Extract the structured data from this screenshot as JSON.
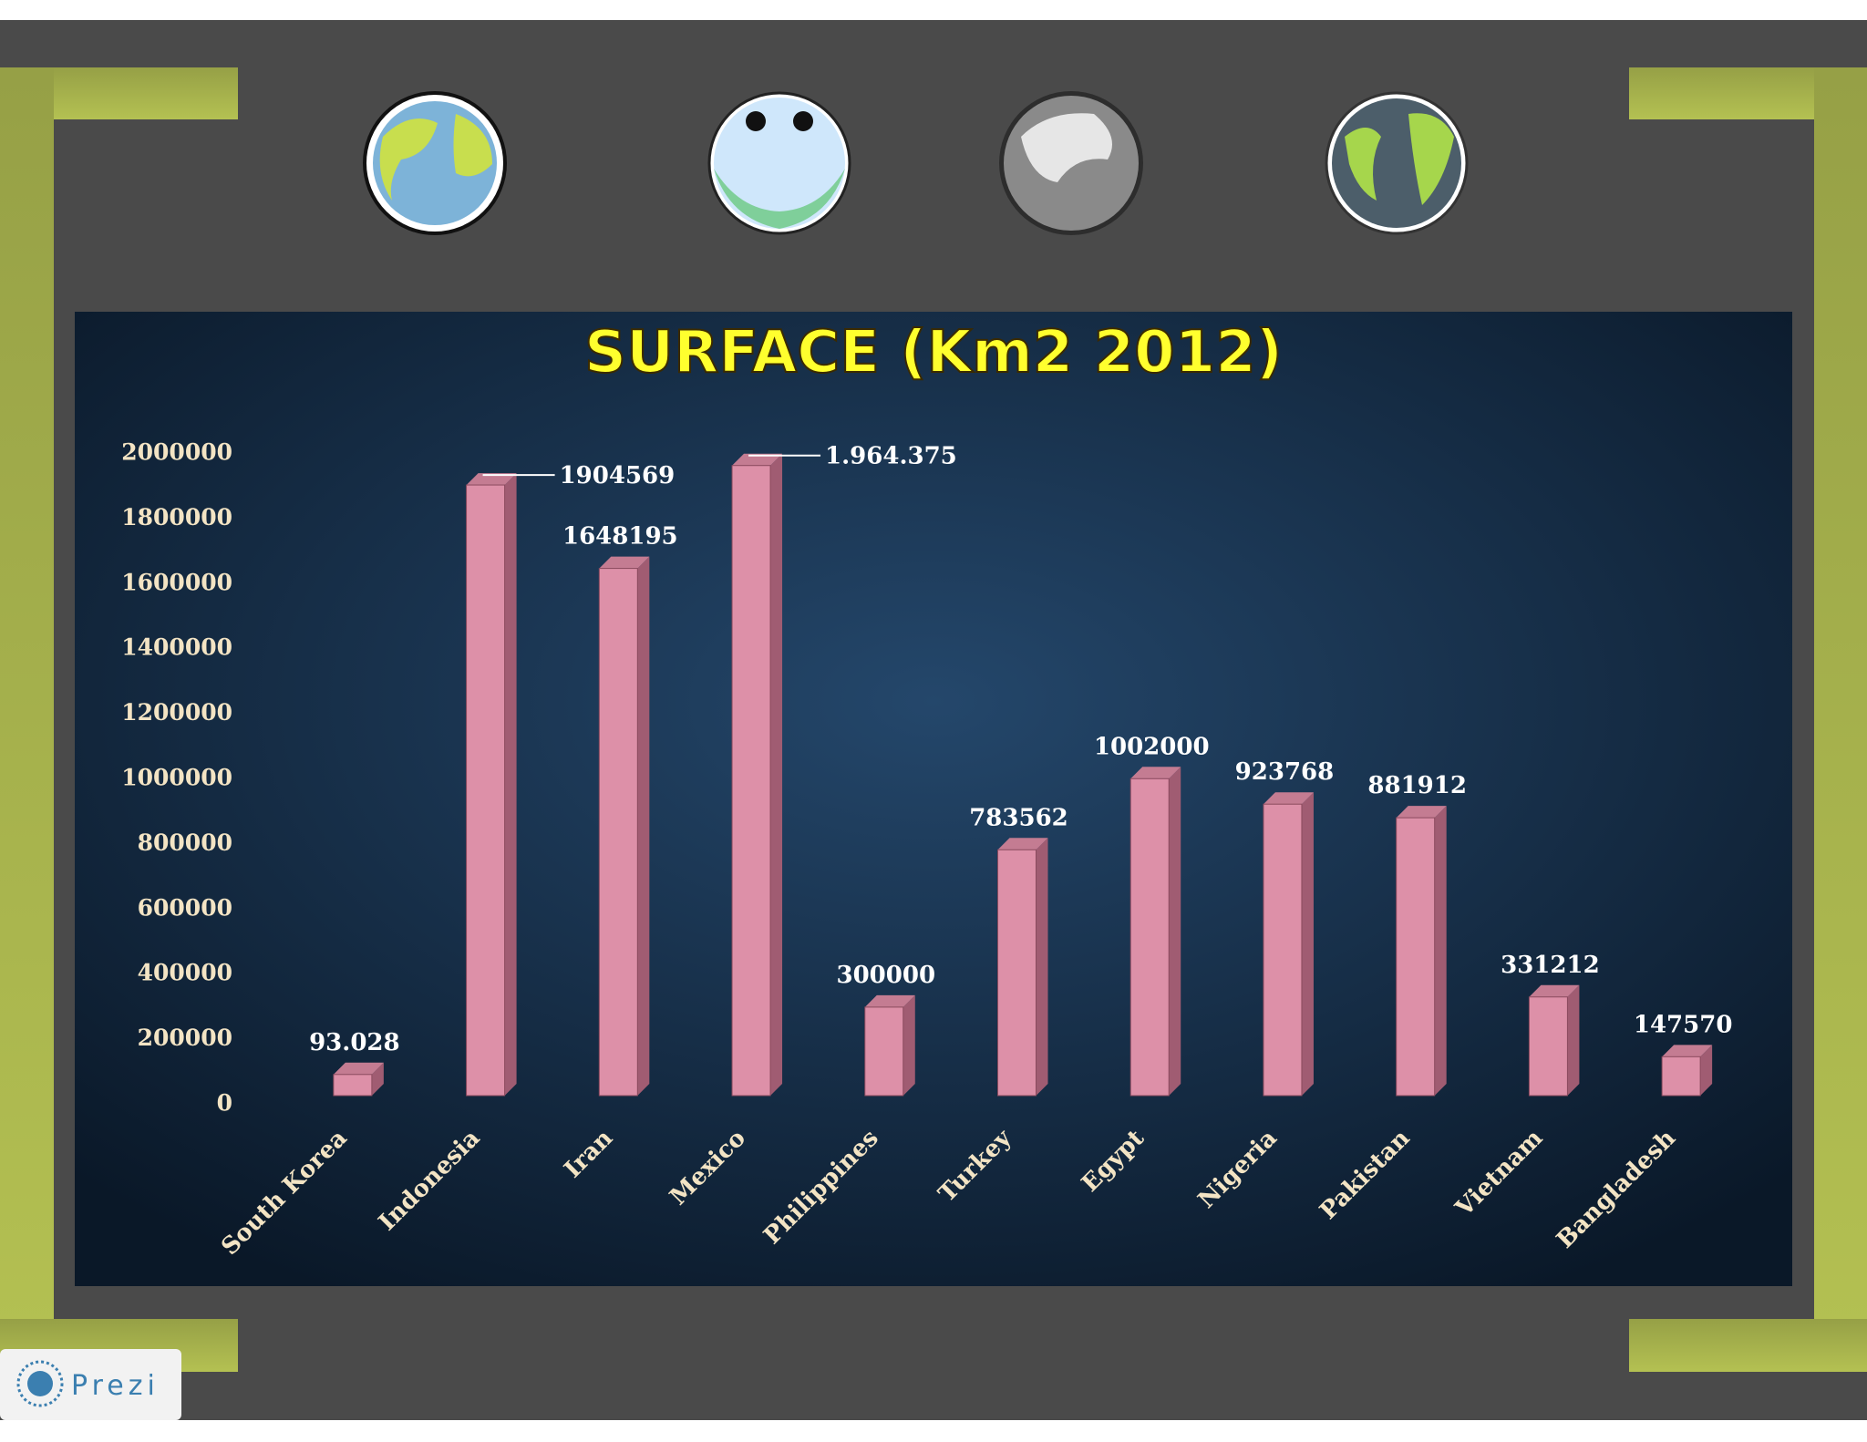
{
  "chart_data": {
    "type": "bar",
    "title": "SURFACE (Km2 2012)",
    "categories": [
      "South Korea",
      "Indonesia",
      "Iran",
      "Mexico",
      "Philippines",
      "Turkey",
      "Egypt",
      "Nigeria",
      "Pakistan",
      "Vietnam",
      "Bangladesh"
    ],
    "values": [
      93028,
      1904569,
      1648195,
      1964375,
      300000,
      783562,
      1002000,
      923768,
      881912,
      331212,
      147570
    ],
    "value_labels": [
      "93.028",
      "1904569",
      "1648195",
      "1.964.375",
      "300000",
      "783562",
      "1002000",
      "923768",
      "881912",
      "331212",
      "147570"
    ],
    "color": "#dd90a8",
    "ylim": [
      0,
      2000000
    ],
    "yticks": [
      0,
      200000,
      400000,
      600000,
      800000,
      1000000,
      1200000,
      1400000,
      1600000,
      1800000,
      2000000
    ],
    "grid": false
  },
  "logo_text": "Prezi"
}
